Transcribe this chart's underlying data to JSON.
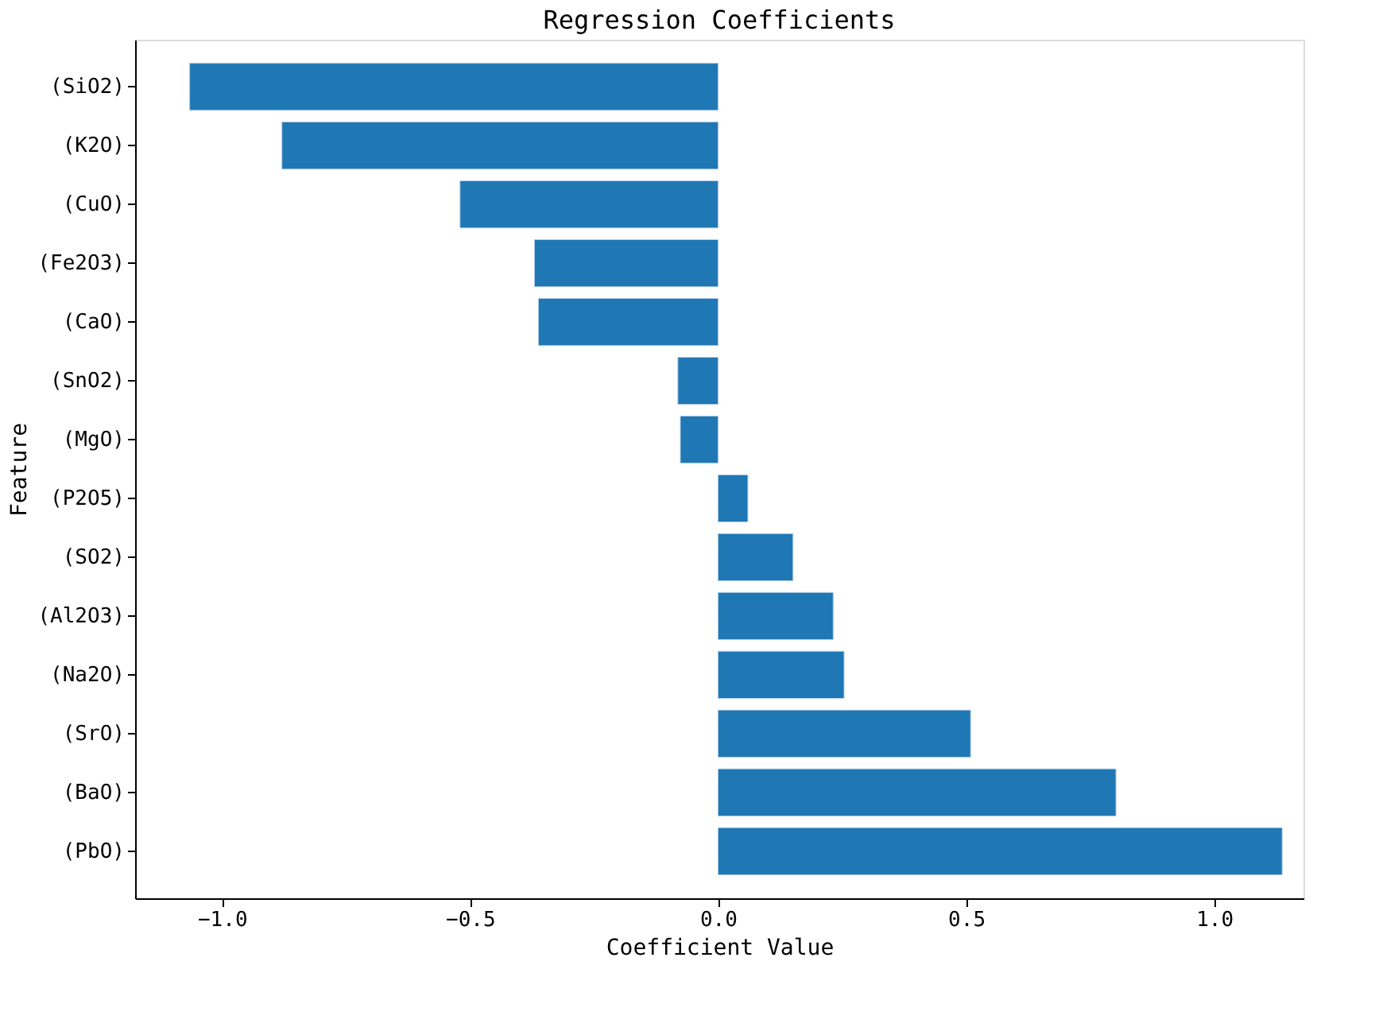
{
  "chart_data": {
    "type": "bar",
    "orientation": "horizontal",
    "title": "Regression Coefficients",
    "xlabel": "Coefficient Value",
    "ylabel": "Feature",
    "categories": [
      "(SiO2)",
      "(K2O)",
      "(CuO)",
      "(Fe2O3)",
      "(CaO)",
      "(SnO2)",
      "(MgO)",
      "(P2O5)",
      "(SO2)",
      "(Al2O3)",
      "(Na2O)",
      "(SrO)",
      "(BaO)",
      "(PbO)"
    ],
    "values": [
      -1.065,
      -0.879,
      -0.52,
      -0.37,
      -0.362,
      -0.081,
      -0.076,
      0.06,
      0.151,
      0.232,
      0.254,
      0.509,
      0.802,
      1.137
    ],
    "color": "#1f77b4",
    "xlim": [
      -1.175,
      1.18
    ],
    "xticks": [
      {
        "value": -1,
        "label": "−1.0"
      },
      {
        "value": -0.5,
        "label": "−0.5"
      },
      {
        "value": 0,
        "label": "0.0"
      },
      {
        "value": 0.5,
        "label": "0.5"
      },
      {
        "value": 1,
        "label": "1.0"
      }
    ],
    "grid": false
  }
}
